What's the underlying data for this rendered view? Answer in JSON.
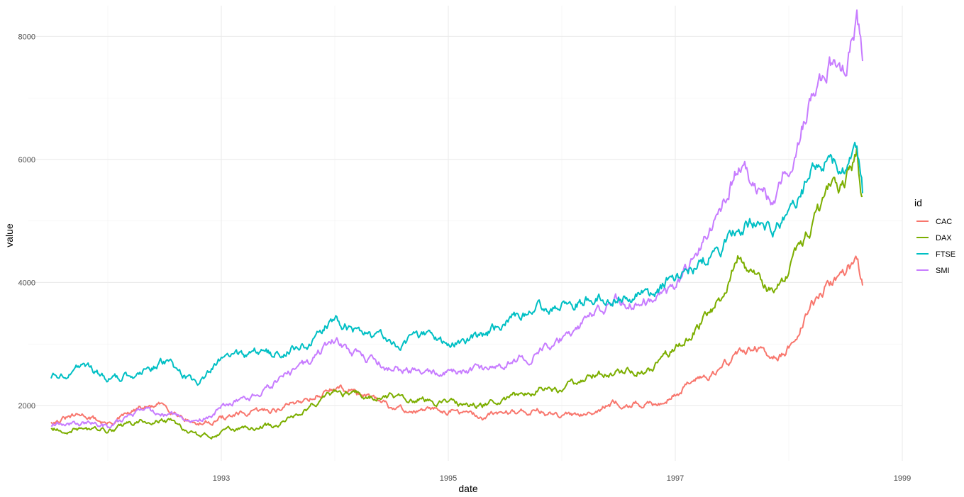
{
  "chart_data": {
    "type": "line",
    "title": "",
    "xlabel": "date",
    "ylabel": "value",
    "xlim": [
      1991.3,
      1999.0
    ],
    "ylim": [
      1100,
      8500
    ],
    "x_ticks": [
      1993,
      1995,
      1997,
      1999
    ],
    "y_ticks": [
      2000,
      4000,
      6000,
      8000
    ],
    "grid": true,
    "legend": {
      "title": "id",
      "position": "right"
    },
    "x": [
      1991.5,
      1991.8,
      1992.0,
      1992.3,
      1992.5,
      1992.8,
      1993.0,
      1993.3,
      1993.5,
      1993.8,
      1994.0,
      1994.15,
      1994.5,
      1994.8,
      1995.0,
      1995.3,
      1995.5,
      1995.8,
      1996.0,
      1996.3,
      1996.5,
      1996.8,
      1997.0,
      1997.2,
      1997.4,
      1997.55,
      1997.7,
      1997.85,
      1998.0,
      1998.2,
      1998.35,
      1998.5,
      1998.6,
      1998.65
    ],
    "series": [
      {
        "name": "CAC",
        "color": "#F8766D",
        "values": [
          1745,
          1840,
          1700,
          1950,
          2000,
          1690,
          1800,
          1880,
          1950,
          2150,
          2280,
          2250,
          1950,
          1900,
          1930,
          1800,
          1900,
          1920,
          1800,
          1950,
          2050,
          2000,
          2200,
          2450,
          2600,
          2850,
          2950,
          2700,
          2950,
          3600,
          4000,
          4250,
          4350,
          3950
        ]
      },
      {
        "name": "DAX",
        "color": "#7CAE00",
        "values": [
          1610,
          1620,
          1580,
          1750,
          1790,
          1490,
          1550,
          1650,
          1700,
          2000,
          2200,
          2180,
          2150,
          2100,
          2050,
          2000,
          2100,
          2250,
          2250,
          2500,
          2550,
          2600,
          2900,
          3300,
          3700,
          4400,
          4100,
          3800,
          4200,
          4900,
          5400,
          5700,
          6150,
          5400
        ]
      },
      {
        "name": "FTSE",
        "color": "#00BFC4",
        "values": [
          2450,
          2650,
          2400,
          2550,
          2700,
          2300,
          2750,
          2850,
          2850,
          3050,
          3450,
          3250,
          3000,
          3100,
          3000,
          3100,
          3350,
          3550,
          3650,
          3750,
          3800,
          3800,
          4100,
          4300,
          4600,
          4900,
          5050,
          4800,
          5200,
          5800,
          6050,
          5950,
          6200,
          5450
        ]
      },
      {
        "name": "SMI",
        "color": "#C77CFF",
        "values": [
          1700,
          1720,
          1650,
          1900,
          1850,
          1700,
          2000,
          2150,
          2400,
          2700,
          3100,
          2850,
          2600,
          2550,
          2550,
          2550,
          2700,
          2850,
          3100,
          3500,
          3700,
          3700,
          3900,
          4500,
          5100,
          5900,
          5600,
          5400,
          6000,
          7000,
          7500,
          7600,
          8400,
          7600
        ]
      }
    ]
  }
}
